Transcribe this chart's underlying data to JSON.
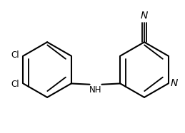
{
  "bg_color": "#ffffff",
  "bond_color": "#000000",
  "atom_color": "#000000",
  "bond_width": 1.5,
  "figsize": [
    2.59,
    1.87
  ],
  "dpi": 100,
  "cl1_label": "Cl",
  "cl2_label": "Cl",
  "nh_label": "NH",
  "n_label": "N",
  "cn_label": "N"
}
